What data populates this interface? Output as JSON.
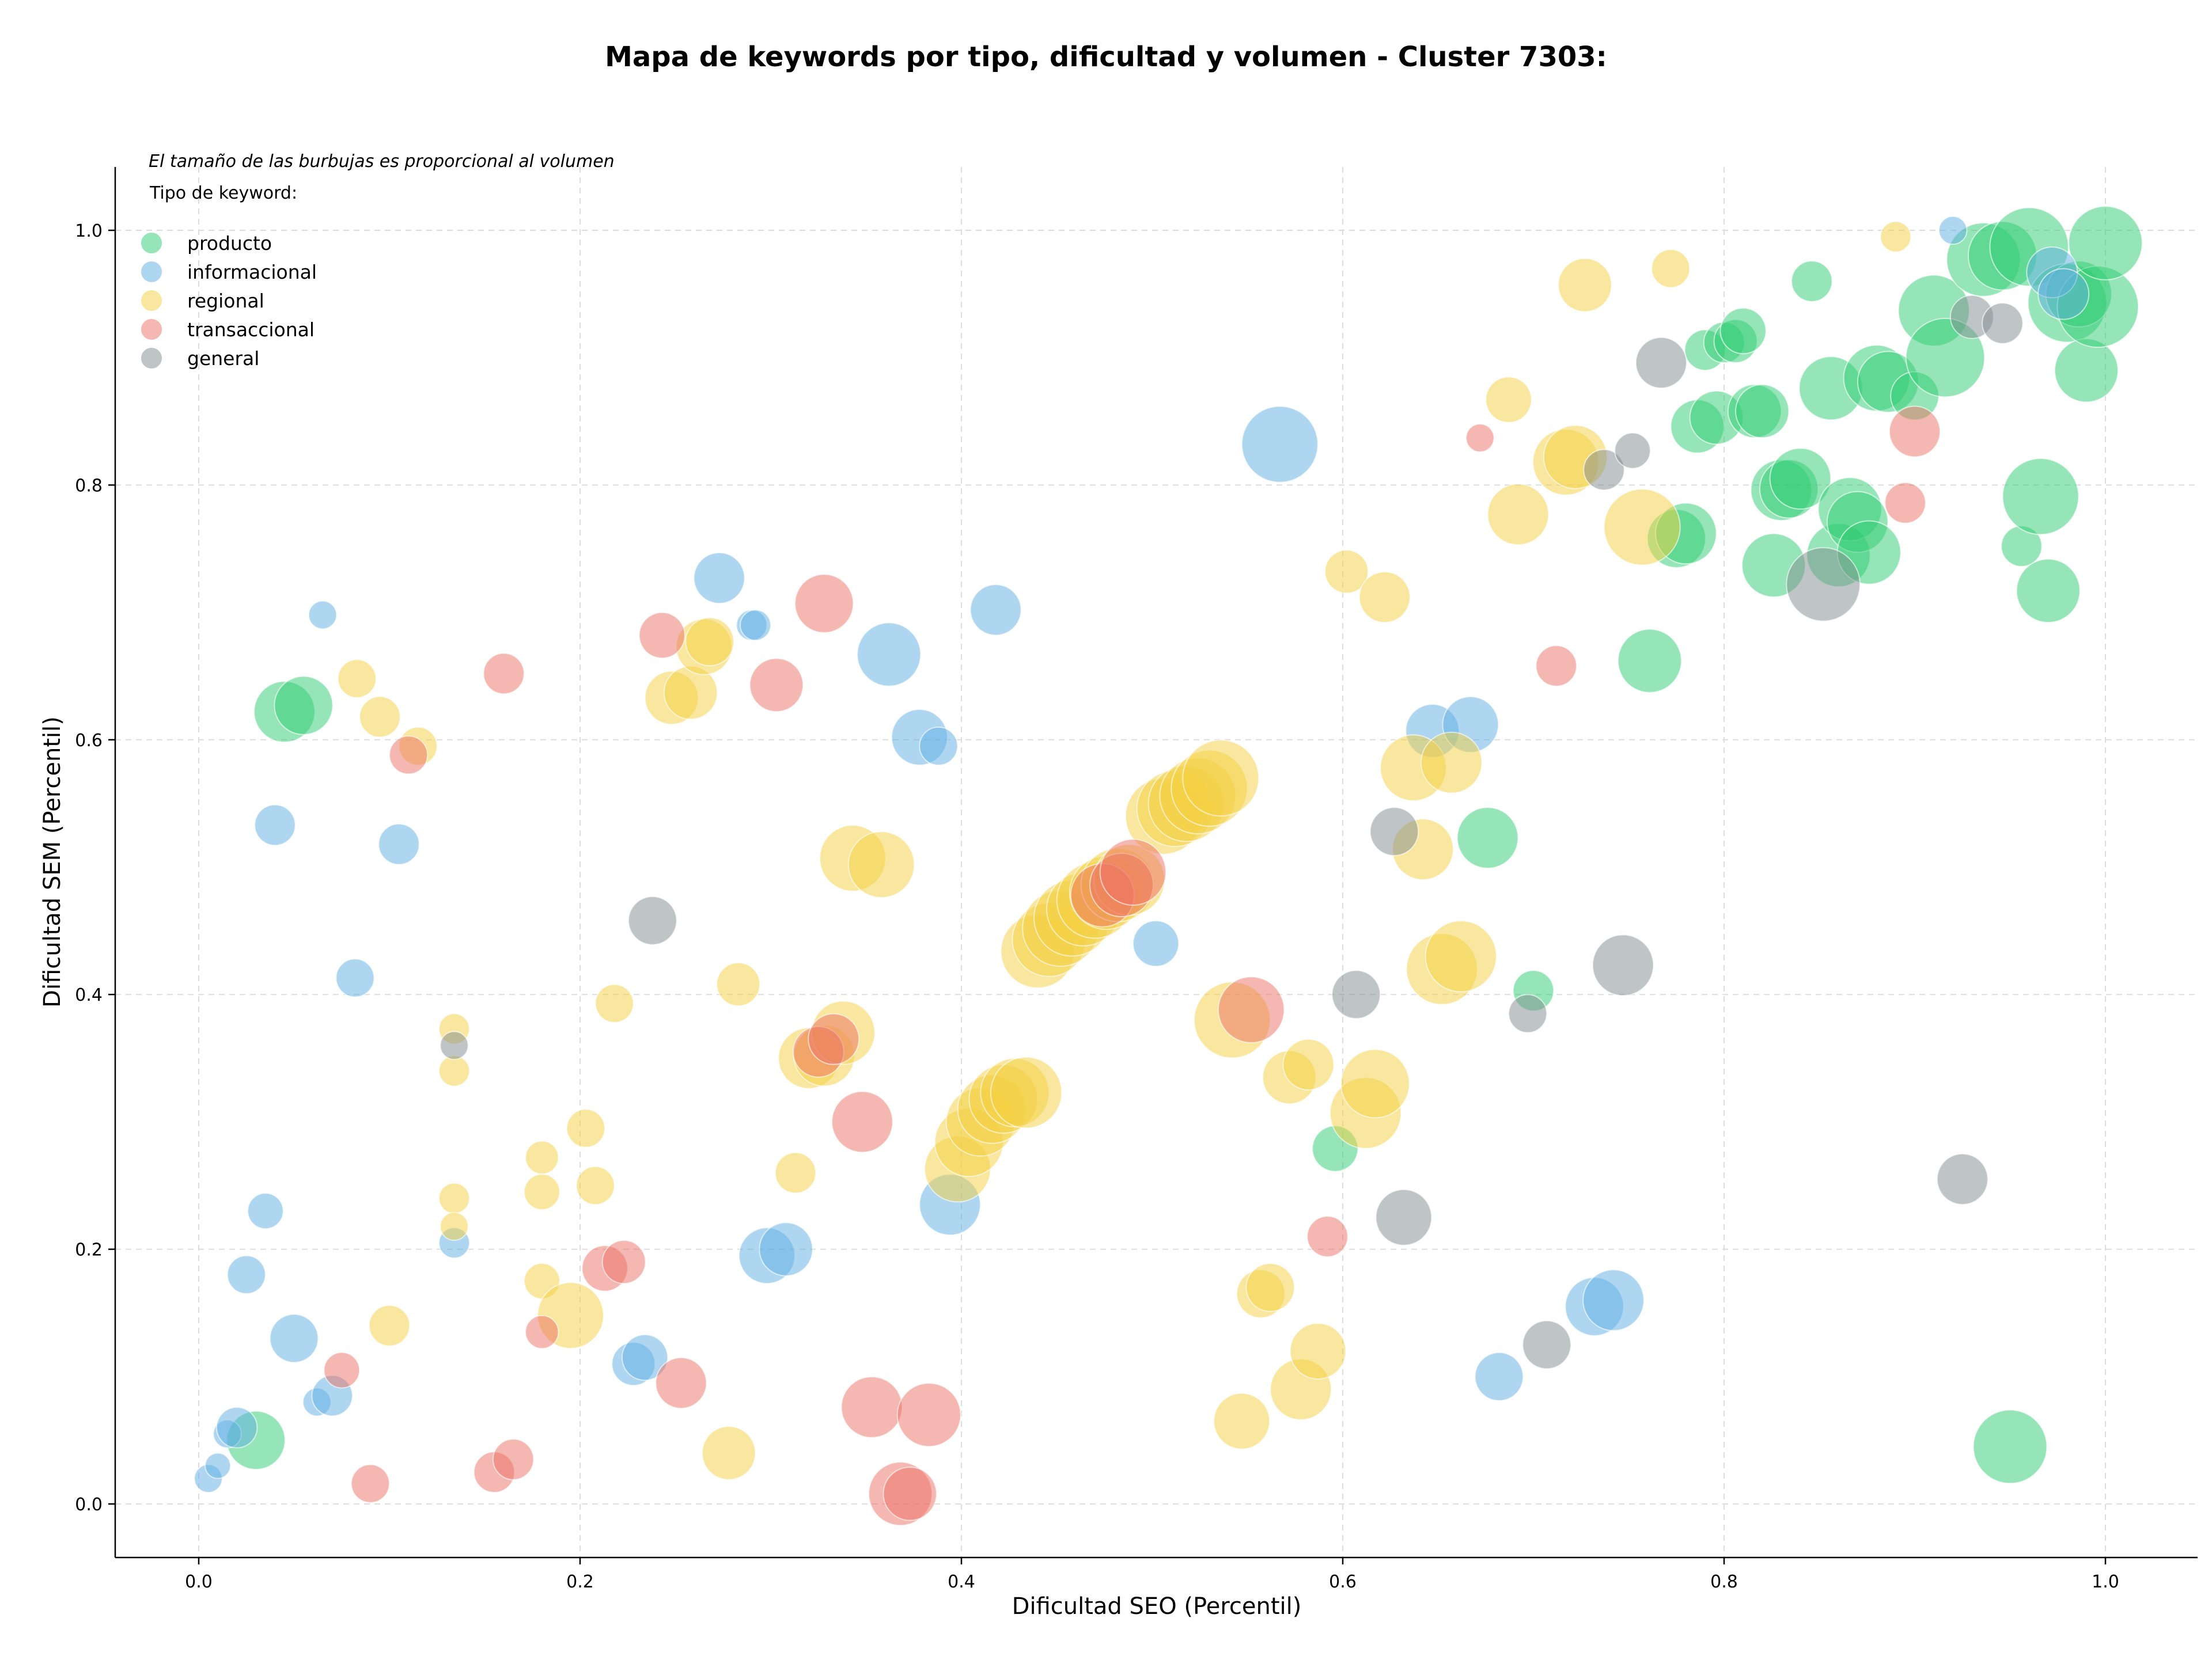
{
  "chart_data": {
    "type": "scatter",
    "title": "Mapa de keywords por tipo, dificultad y volumen - Cluster 7303:",
    "xlabel": "Dificultad SEO (Percentil)",
    "ylabel": "Dificultad SEM (Percentil)",
    "xlim": [
      -0.045,
      1.05
    ],
    "ylim": [
      -0.04,
      1.05
    ],
    "xticks": [
      "0.0",
      "0.2",
      "0.4",
      "0.6",
      "0.8",
      "1.0"
    ],
    "yticks": [
      "0.0",
      "0.2",
      "0.4",
      "0.6",
      "0.8",
      "1.0"
    ],
    "grid": true,
    "legend": {
      "placement": "top-left",
      "note": "El tamaño de las burbujas es proporcional al volumen",
      "title": "Tipo de keyword:"
    },
    "series": [
      {
        "name": "producto",
        "color": "#2ecc71",
        "points": [
          [
            0.045,
            0.622,
            2.4
          ],
          [
            0.055,
            0.627,
            2.3
          ],
          [
            0.03,
            0.05,
            2.3
          ],
          [
            0.596,
            0.279,
            1.8
          ],
          [
            0.676,
            0.523,
            2.4
          ],
          [
            0.7,
            0.403,
            1.6
          ],
          [
            0.761,
            0.662,
            2.5
          ],
          [
            0.775,
            0.758,
            2.3
          ],
          [
            0.78,
            0.762,
            2.4
          ],
          [
            0.786,
            0.846,
            2.1
          ],
          [
            0.79,
            0.906,
            1.6
          ],
          [
            0.796,
            0.853,
            2.1
          ],
          [
            0.8,
            0.912,
            1.6
          ],
          [
            0.806,
            0.913,
            1.7
          ],
          [
            0.81,
            0.921,
            1.8
          ],
          [
            0.816,
            0.858,
            2.1
          ],
          [
            0.82,
            0.858,
            2.1
          ],
          [
            0.826,
            0.737,
            2.5
          ],
          [
            0.83,
            0.796,
            2.4
          ],
          [
            0.834,
            0.797,
            2.3
          ],
          [
            0.84,
            0.805,
            2.4
          ],
          [
            0.846,
            0.96,
            1.6
          ],
          [
            0.856,
            0.876,
            2.5
          ],
          [
            0.86,
            0.745,
            2.5
          ],
          [
            0.866,
            0.781,
            2.5
          ],
          [
            0.87,
            0.771,
            2.4
          ],
          [
            0.876,
            0.747,
            2.5
          ],
          [
            0.88,
            0.884,
            2.6
          ],
          [
            0.886,
            0.881,
            2.4
          ],
          [
            0.9,
            0.87,
            1.9
          ],
          [
            0.91,
            0.937,
            2.8
          ],
          [
            0.916,
            0.9,
            3.1
          ],
          [
            0.936,
            0.977,
            2.9
          ],
          [
            0.946,
            0.98,
            2.7
          ],
          [
            0.956,
            0.752,
            1.6
          ],
          [
            0.96,
            0.987,
            3.1
          ],
          [
            0.966,
            0.791,
            3.0
          ],
          [
            0.97,
            0.717,
            2.5
          ],
          [
            0.98,
            0.943,
            3.1
          ],
          [
            0.986,
            0.95,
            2.6
          ],
          [
            0.99,
            0.89,
            2.5
          ],
          [
            0.996,
            0.94,
            3.2
          ],
          [
            1.0,
            0.99,
            2.9
          ],
          [
            0.95,
            0.045,
            2.9
          ]
        ]
      },
      {
        "name": "informacional",
        "color": "#5dade2",
        "points": [
          [
            0.005,
            0.02,
            1.1
          ],
          [
            0.01,
            0.03,
            1.0
          ],
          [
            0.015,
            0.055,
            1.1
          ],
          [
            0.02,
            0.06,
            1.6
          ],
          [
            0.025,
            0.18,
            1.5
          ],
          [
            0.035,
            0.23,
            1.4
          ],
          [
            0.04,
            0.533,
            1.6
          ],
          [
            0.05,
            0.13,
            1.9
          ],
          [
            0.062,
            0.08,
            1.1
          ],
          [
            0.065,
            0.698,
            1.1
          ],
          [
            0.07,
            0.085,
            1.6
          ],
          [
            0.082,
            0.413,
            1.5
          ],
          [
            0.105,
            0.518,
            1.6
          ],
          [
            0.134,
            0.205,
            1.2
          ],
          [
            0.228,
            0.11,
            1.7
          ],
          [
            0.234,
            0.115,
            1.8
          ],
          [
            0.273,
            0.727,
            2.0
          ],
          [
            0.29,
            0.69,
            1.2
          ],
          [
            0.292,
            0.69,
            1.2
          ],
          [
            0.298,
            0.195,
            2.2
          ],
          [
            0.308,
            0.2,
            2.1
          ],
          [
            0.362,
            0.667,
            2.5
          ],
          [
            0.378,
            0.602,
            2.2
          ],
          [
            0.388,
            0.595,
            1.5
          ],
          [
            0.394,
            0.235,
            2.4
          ],
          [
            0.418,
            0.702,
            2.0
          ],
          [
            0.502,
            0.44,
            1.8
          ],
          [
            0.567,
            0.832,
            3.0
          ],
          [
            0.647,
            0.607,
            2.1
          ],
          [
            0.667,
            0.612,
            2.2
          ],
          [
            0.682,
            0.1,
            1.9
          ],
          [
            0.732,
            0.155,
            2.3
          ],
          [
            0.742,
            0.16,
            2.4
          ],
          [
            0.92,
            1.0,
            1.1
          ],
          [
            0.972,
            0.967,
            2.0
          ],
          [
            0.978,
            0.95,
            2.0
          ]
        ]
      },
      {
        "name": "regional",
        "color": "#f4d03f",
        "points": [
          [
            0.083,
            0.648,
            1.5
          ],
          [
            0.095,
            0.618,
            1.6
          ],
          [
            0.1,
            0.14,
            1.6
          ],
          [
            0.115,
            0.595,
            1.5
          ],
          [
            0.134,
            0.373,
            1.2
          ],
          [
            0.134,
            0.34,
            1.2
          ],
          [
            0.134,
            0.24,
            1.2
          ],
          [
            0.134,
            0.218,
            1.1
          ],
          [
            0.18,
            0.272,
            1.3
          ],
          [
            0.18,
            0.245,
            1.4
          ],
          [
            0.18,
            0.175,
            1.4
          ],
          [
            0.195,
            0.148,
            2.6
          ],
          [
            0.203,
            0.295,
            1.5
          ],
          [
            0.208,
            0.25,
            1.5
          ],
          [
            0.218,
            0.393,
            1.5
          ],
          [
            0.248,
            0.633,
            2.1
          ],
          [
            0.258,
            0.637,
            2.1
          ],
          [
            0.265,
            0.673,
            2.2
          ],
          [
            0.268,
            0.677,
            1.9
          ],
          [
            0.278,
            0.04,
            2.1
          ],
          [
            0.283,
            0.408,
            1.7
          ],
          [
            0.313,
            0.26,
            1.6
          ],
          [
            0.32,
            0.35,
            2.4
          ],
          [
            0.328,
            0.352,
            2.4
          ],
          [
            0.338,
            0.37,
            2.5
          ],
          [
            0.343,
            0.507,
            2.6
          ],
          [
            0.358,
            0.502,
            2.6
          ],
          [
            0.398,
            0.263,
            2.6
          ],
          [
            0.404,
            0.284,
            2.7
          ],
          [
            0.41,
            0.3,
            2.7
          ],
          [
            0.416,
            0.31,
            2.7
          ],
          [
            0.422,
            0.318,
            2.7
          ],
          [
            0.428,
            0.323,
            2.7
          ],
          [
            0.434,
            0.323,
            2.8
          ],
          [
            0.44,
            0.434,
            2.9
          ],
          [
            0.446,
            0.443,
            2.9
          ],
          [
            0.452,
            0.452,
            3.0
          ],
          [
            0.458,
            0.46,
            3.0
          ],
          [
            0.464,
            0.467,
            2.9
          ],
          [
            0.47,
            0.474,
            3.0
          ],
          [
            0.476,
            0.48,
            2.9
          ],
          [
            0.482,
            0.486,
            2.9
          ],
          [
            0.488,
            0.49,
            2.8
          ],
          [
            0.506,
            0.54,
            3.0
          ],
          [
            0.512,
            0.546,
            3.0
          ],
          [
            0.518,
            0.55,
            3.0
          ],
          [
            0.524,
            0.556,
            3.0
          ],
          [
            0.53,
            0.562,
            3.0
          ],
          [
            0.536,
            0.57,
            3.0
          ],
          [
            0.542,
            0.38,
            3.0
          ],
          [
            0.547,
            0.065,
            2.2
          ],
          [
            0.557,
            0.165,
            1.9
          ],
          [
            0.562,
            0.17,
            1.9
          ],
          [
            0.572,
            0.335,
            2.1
          ],
          [
            0.578,
            0.09,
            2.4
          ],
          [
            0.582,
            0.345,
            2.0
          ],
          [
            0.587,
            0.12,
            2.2
          ],
          [
            0.602,
            0.732,
            1.7
          ],
          [
            0.612,
            0.307,
            2.8
          ],
          [
            0.617,
            0.33,
            2.7
          ],
          [
            0.622,
            0.712,
            2.0
          ],
          [
            0.637,
            0.578,
            2.6
          ],
          [
            0.642,
            0.514,
            2.4
          ],
          [
            0.652,
            0.42,
            2.8
          ],
          [
            0.657,
            0.582,
            2.4
          ],
          [
            0.662,
            0.43,
            2.8
          ],
          [
            0.687,
            0.867,
            1.8
          ],
          [
            0.692,
            0.777,
            2.4
          ],
          [
            0.717,
            0.818,
            2.6
          ],
          [
            0.722,
            0.822,
            2.5
          ],
          [
            0.727,
            0.957,
            2.1
          ],
          [
            0.757,
            0.767,
            3.0
          ],
          [
            0.772,
            0.97,
            1.5
          ],
          [
            0.89,
            0.995,
            1.2
          ]
        ]
      },
      {
        "name": "transaccional",
        "color": "#ec7063",
        "points": [
          [
            0.075,
            0.105,
            1.4
          ],
          [
            0.09,
            0.016,
            1.5
          ],
          [
            0.11,
            0.588,
            1.5
          ],
          [
            0.155,
            0.025,
            1.6
          ],
          [
            0.16,
            0.652,
            1.6
          ],
          [
            0.165,
            0.035,
            1.6
          ],
          [
            0.18,
            0.135,
            1.3
          ],
          [
            0.213,
            0.185,
            1.8
          ],
          [
            0.223,
            0.19,
            1.7
          ],
          [
            0.243,
            0.682,
            1.8
          ],
          [
            0.253,
            0.095,
            2.0
          ],
          [
            0.303,
            0.643,
            2.1
          ],
          [
            0.325,
            0.355,
            2.0
          ],
          [
            0.328,
            0.707,
            2.3
          ],
          [
            0.333,
            0.365,
            2.0
          ],
          [
            0.348,
            0.3,
            2.4
          ],
          [
            0.353,
            0.076,
            2.4
          ],
          [
            0.368,
            0.008,
            2.5
          ],
          [
            0.373,
            0.008,
            2.1
          ],
          [
            0.383,
            0.07,
            2.5
          ],
          [
            0.474,
            0.478,
            2.5
          ],
          [
            0.484,
            0.486,
            2.5
          ],
          [
            0.49,
            0.496,
            2.6
          ],
          [
            0.552,
            0.388,
            2.6
          ],
          [
            0.592,
            0.21,
            1.6
          ],
          [
            0.672,
            0.837,
            1.1
          ],
          [
            0.712,
            0.658,
            1.6
          ],
          [
            0.895,
            0.786,
            1.6
          ],
          [
            0.9,
            0.842,
            2.0
          ]
        ]
      },
      {
        "name": "general",
        "color": "#7f8c8d",
        "points": [
          [
            0.134,
            0.36,
            1.1
          ],
          [
            0.238,
            0.458,
            1.9
          ],
          [
            0.607,
            0.4,
            1.9
          ],
          [
            0.627,
            0.528,
            1.9
          ],
          [
            0.632,
            0.225,
            2.2
          ],
          [
            0.697,
            0.385,
            1.5
          ],
          [
            0.707,
            0.125,
            1.9
          ],
          [
            0.737,
            0.812,
            1.6
          ],
          [
            0.747,
            0.423,
            2.4
          ],
          [
            0.752,
            0.827,
            1.4
          ],
          [
            0.767,
            0.896,
            2.0
          ],
          [
            0.852,
            0.722,
            2.9
          ],
          [
            0.925,
            0.255,
            2.0
          ],
          [
            0.93,
            0.932,
            1.7
          ],
          [
            0.946,
            0.927,
            1.6
          ]
        ]
      }
    ]
  }
}
